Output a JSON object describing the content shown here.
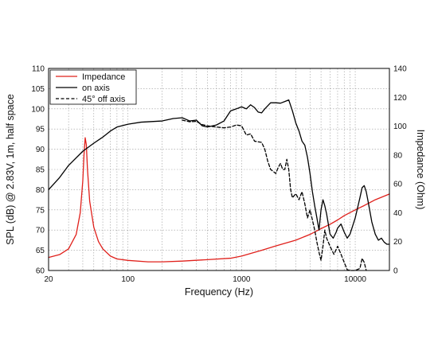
{
  "chart_data": {
    "type": "line",
    "xlabel": "Frequency (Hz)",
    "ylabel_left": "SPL (dB) @ 2.83V, 1m, half space",
    "ylabel_right": "Impedance (Ohm)",
    "x_scale": "log",
    "xlim": [
      20,
      20000
    ],
    "ylim_left": [
      60,
      110
    ],
    "ylim_right": [
      0,
      140
    ],
    "x_ticks": [
      "20",
      "100",
      "1000",
      "10000"
    ],
    "y_ticks_left": [
      "60",
      "65",
      "70",
      "75",
      "80",
      "85",
      "90",
      "95",
      "100",
      "105",
      "110"
    ],
    "y_ticks_right": [
      "0",
      "20",
      "40",
      "60",
      "80",
      "100",
      "120",
      "140"
    ],
    "grid": true,
    "legend_position": "top-left",
    "series": [
      {
        "name": "Impedance",
        "axis": "right",
        "color": "#e0201b",
        "style": "solid",
        "points": [
          [
            20,
            9
          ],
          [
            25,
            11
          ],
          [
            30,
            15
          ],
          [
            35,
            25
          ],
          [
            38,
            40
          ],
          [
            40,
            62
          ],
          [
            41,
            80
          ],
          [
            42,
            92
          ],
          [
            43,
            87
          ],
          [
            44,
            70
          ],
          [
            46,
            48
          ],
          [
            50,
            30
          ],
          [
            55,
            20
          ],
          [
            60,
            15
          ],
          [
            70,
            10
          ],
          [
            80,
            8
          ],
          [
            100,
            7
          ],
          [
            150,
            6
          ],
          [
            200,
            6
          ],
          [
            300,
            6.5
          ],
          [
            500,
            7.5
          ],
          [
            800,
            8.5
          ],
          [
            1000,
            10
          ],
          [
            1500,
            14
          ],
          [
            2000,
            17
          ],
          [
            3000,
            21
          ],
          [
            4000,
            25
          ],
          [
            5000,
            29
          ],
          [
            6000,
            32
          ],
          [
            7000,
            35
          ],
          [
            8000,
            38
          ],
          [
            10000,
            42
          ],
          [
            12000,
            45
          ],
          [
            15000,
            49
          ],
          [
            20000,
            53
          ]
        ]
      },
      {
        "name": "on axis",
        "axis": "left",
        "color": "#000000",
        "style": "solid",
        "points": [
          [
            20,
            80
          ],
          [
            25,
            83
          ],
          [
            30,
            86
          ],
          [
            40,
            89.5
          ],
          [
            50,
            91.5
          ],
          [
            60,
            93
          ],
          [
            70,
            94.5
          ],
          [
            80,
            95.5
          ],
          [
            100,
            96.2
          ],
          [
            130,
            96.7
          ],
          [
            150,
            96.8
          ],
          [
            200,
            97
          ],
          [
            250,
            97.6
          ],
          [
            300,
            97.8
          ],
          [
            350,
            97
          ],
          [
            400,
            97.2
          ],
          [
            450,
            95.8
          ],
          [
            500,
            95.5
          ],
          [
            600,
            96
          ],
          [
            700,
            97
          ],
          [
            800,
            99.5
          ],
          [
            900,
            100
          ],
          [
            1000,
            100.5
          ],
          [
            1100,
            100
          ],
          [
            1200,
            101
          ],
          [
            1300,
            100.3
          ],
          [
            1400,
            99.2
          ],
          [
            1500,
            99
          ],
          [
            1600,
            100
          ],
          [
            1800,
            101.5
          ],
          [
            2000,
            101.5
          ],
          [
            2200,
            101.4
          ],
          [
            2400,
            101.8
          ],
          [
            2600,
            102.2
          ],
          [
            2800,
            99.5
          ],
          [
            3000,
            96.5
          ],
          [
            3200,
            94.5
          ],
          [
            3400,
            92
          ],
          [
            3600,
            91
          ],
          [
            3800,
            88
          ],
          [
            4000,
            84
          ],
          [
            4200,
            79.5
          ],
          [
            4400,
            76
          ],
          [
            4600,
            73
          ],
          [
            4800,
            70
          ],
          [
            5000,
            75
          ],
          [
            5200,
            77.5
          ],
          [
            5400,
            76
          ],
          [
            5600,
            74
          ],
          [
            6000,
            69
          ],
          [
            6400,
            68
          ],
          [
            6800,
            69.5
          ],
          [
            7000,
            70.5
          ],
          [
            7500,
            71.5
          ],
          [
            8000,
            69.5
          ],
          [
            8500,
            68
          ],
          [
            9000,
            69
          ],
          [
            10000,
            73
          ],
          [
            11000,
            78
          ],
          [
            11500,
            80.5
          ],
          [
            12000,
            81
          ],
          [
            12500,
            79.5
          ],
          [
            13000,
            77
          ],
          [
            14000,
            72
          ],
          [
            15000,
            69
          ],
          [
            16000,
            67.5
          ],
          [
            17000,
            68
          ],
          [
            18000,
            67
          ],
          [
            19000,
            66.5
          ],
          [
            20000,
            66.5
          ]
        ]
      },
      {
        "name": "45° off axis",
        "axis": "left",
        "color": "#000000",
        "style": "dashed",
        "points": [
          [
            300,
            97.2
          ],
          [
            350,
            96.8
          ],
          [
            400,
            96.9
          ],
          [
            450,
            96.1
          ],
          [
            500,
            95.8
          ],
          [
            600,
            95.5
          ],
          [
            700,
            95.3
          ],
          [
            800,
            95.5
          ],
          [
            900,
            96
          ],
          [
            1000,
            95.8
          ],
          [
            1100,
            93.5
          ],
          [
            1200,
            93.8
          ],
          [
            1300,
            92
          ],
          [
            1500,
            91.7
          ],
          [
            1600,
            90
          ],
          [
            1700,
            87
          ],
          [
            1800,
            85
          ],
          [
            1900,
            84.5
          ],
          [
            2000,
            84
          ],
          [
            2100,
            85.5
          ],
          [
            2200,
            86.5
          ],
          [
            2300,
            85
          ],
          [
            2400,
            85
          ],
          [
            2500,
            87.5
          ],
          [
            2600,
            85
          ],
          [
            2700,
            80
          ],
          [
            2800,
            78
          ],
          [
            3000,
            79
          ],
          [
            3200,
            77.5
          ],
          [
            3400,
            79.5
          ],
          [
            3600,
            76.5
          ],
          [
            3800,
            73
          ],
          [
            4000,
            75
          ],
          [
            4200,
            72.5
          ],
          [
            4400,
            70
          ],
          [
            4600,
            67
          ],
          [
            4800,
            64.5
          ],
          [
            5000,
            62.5
          ],
          [
            5200,
            66
          ],
          [
            5400,
            70
          ],
          [
            5600,
            68
          ],
          [
            6000,
            66
          ],
          [
            6500,
            64
          ],
          [
            7000,
            66
          ],
          [
            7500,
            64
          ],
          [
            8000,
            62
          ],
          [
            8500,
            60.2
          ],
          [
            9000,
            60
          ],
          [
            10000,
            60
          ],
          [
            11000,
            60.5
          ],
          [
            11500,
            63
          ],
          [
            12000,
            62
          ],
          [
            12500,
            60
          ]
        ]
      }
    ]
  }
}
